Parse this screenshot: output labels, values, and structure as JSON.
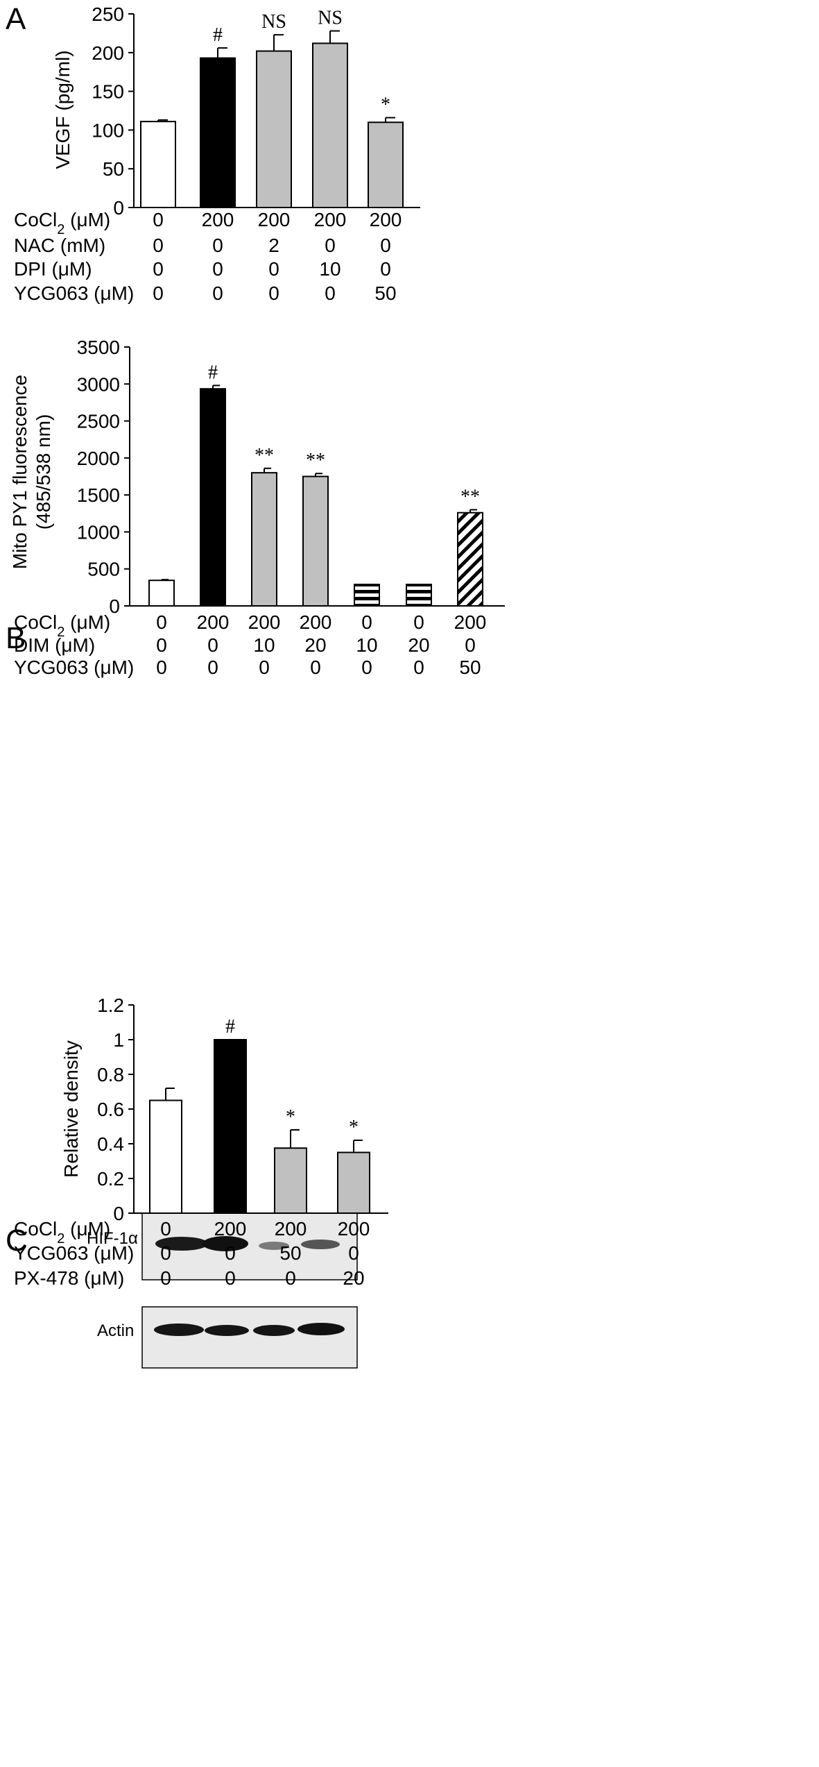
{
  "colors": {
    "white": "#ffffff",
    "black": "#000000",
    "gray": "#c0c0c0",
    "blot_bg": "#e8e8e8",
    "band": "#1a1a1a"
  },
  "blot": {
    "labels": [
      "HIF-1α",
      "Actin"
    ]
  },
  "chart_data": [
    {
      "panel": "A",
      "type": "bar",
      "ylabel": "VEGF (pg/ml)",
      "ylim": [
        0,
        250
      ],
      "yticks": [
        0,
        50,
        100,
        150,
        200,
        250
      ],
      "bars": [
        {
          "value": 111,
          "error": 2,
          "fill": "white",
          "annotation": ""
        },
        {
          "value": 193,
          "error": 13,
          "fill": "black",
          "annotation": "#"
        },
        {
          "value": 202,
          "error": 21,
          "fill": "gray",
          "annotation": "NS"
        },
        {
          "value": 212,
          "error": 16,
          "fill": "gray",
          "annotation": "NS"
        },
        {
          "value": 110,
          "error": 6,
          "fill": "gray",
          "annotation": "*"
        }
      ],
      "conditions": [
        {
          "label": "CoCl",
          "sub": "2",
          "unit": " (μM)",
          "values": [
            "0",
            "200",
            "200",
            "200",
            "200"
          ]
        },
        {
          "label": "NAC (mM)",
          "sub": "",
          "unit": "",
          "values": [
            "0",
            "0",
            "2",
            "0",
            "0"
          ]
        },
        {
          "label": "DPI (μM)",
          "sub": "",
          "unit": "",
          "values": [
            "0",
            "0",
            "0",
            "10",
            "0"
          ]
        },
        {
          "label": "YCG063 (μM)",
          "sub": "",
          "unit": "",
          "values": [
            "0",
            "0",
            "0",
            "0",
            "50"
          ]
        }
      ]
    },
    {
      "panel": "B",
      "type": "bar",
      "ylabel": "Mito PY1 fluorescence",
      "ylabel2": "(485/538 nm)",
      "ylim": [
        0,
        3500
      ],
      "yticks": [
        0,
        500,
        1000,
        1500,
        2000,
        2500,
        3000,
        3500
      ],
      "bars": [
        {
          "value": 345,
          "error": 10,
          "fill": "white",
          "annotation": ""
        },
        {
          "value": 2935,
          "error": 45,
          "fill": "black",
          "annotation": "#"
        },
        {
          "value": 1800,
          "error": 60,
          "fill": "gray",
          "annotation": "**"
        },
        {
          "value": 1750,
          "error": 40,
          "fill": "gray",
          "annotation": "**"
        },
        {
          "value": 290,
          "error": 0,
          "fill": "hstripe",
          "annotation": ""
        },
        {
          "value": 290,
          "error": 0,
          "fill": "hstripe",
          "annotation": ""
        },
        {
          "value": 1260,
          "error": 40,
          "fill": "diag",
          "annotation": "**"
        }
      ],
      "conditions": [
        {
          "label": "CoCl",
          "sub": "2",
          "unit": " (μM)",
          "values": [
            "0",
            "200",
            "200",
            "200",
            "0",
            "0",
            "200"
          ]
        },
        {
          "label": "DIM (μM)",
          "sub": "",
          "unit": "",
          "values": [
            "0",
            "0",
            "10",
            "20",
            "10",
            "20",
            "0"
          ]
        },
        {
          "label": "YCG063 (μM)",
          "sub": "",
          "unit": "",
          "values": [
            "0",
            "0",
            "0",
            "0",
            "0",
            "0",
            "50"
          ]
        }
      ]
    },
    {
      "panel": "C",
      "type": "bar",
      "ylabel": "Relative density",
      "ylim": [
        0,
        1.2
      ],
      "yticks": [
        "0",
        "0.2",
        "0.4",
        "0.6",
        "0.8",
        "1",
        "1.2"
      ],
      "bars": [
        {
          "value": 0.65,
          "error": 0.07,
          "fill": "white",
          "annotation": ""
        },
        {
          "value": 1.0,
          "error": 0,
          "fill": "black",
          "annotation": "#"
        },
        {
          "value": 0.375,
          "error": 0.105,
          "fill": "gray",
          "annotation": "*"
        },
        {
          "value": 0.35,
          "error": 0.07,
          "fill": "gray",
          "annotation": "*"
        }
      ],
      "conditions": [
        {
          "label": "CoCl",
          "sub": "2",
          "unit": " (μM)",
          "values": [
            "0",
            "200",
            "200",
            "200"
          ]
        },
        {
          "label": "YCG063 (μM)",
          "sub": "",
          "unit": "",
          "values": [
            "0",
            "0",
            "50",
            "0"
          ]
        },
        {
          "label": "PX-478 (μM)",
          "sub": "",
          "unit": "",
          "values": [
            "0",
            "0",
            "0",
            "20"
          ]
        }
      ]
    }
  ]
}
